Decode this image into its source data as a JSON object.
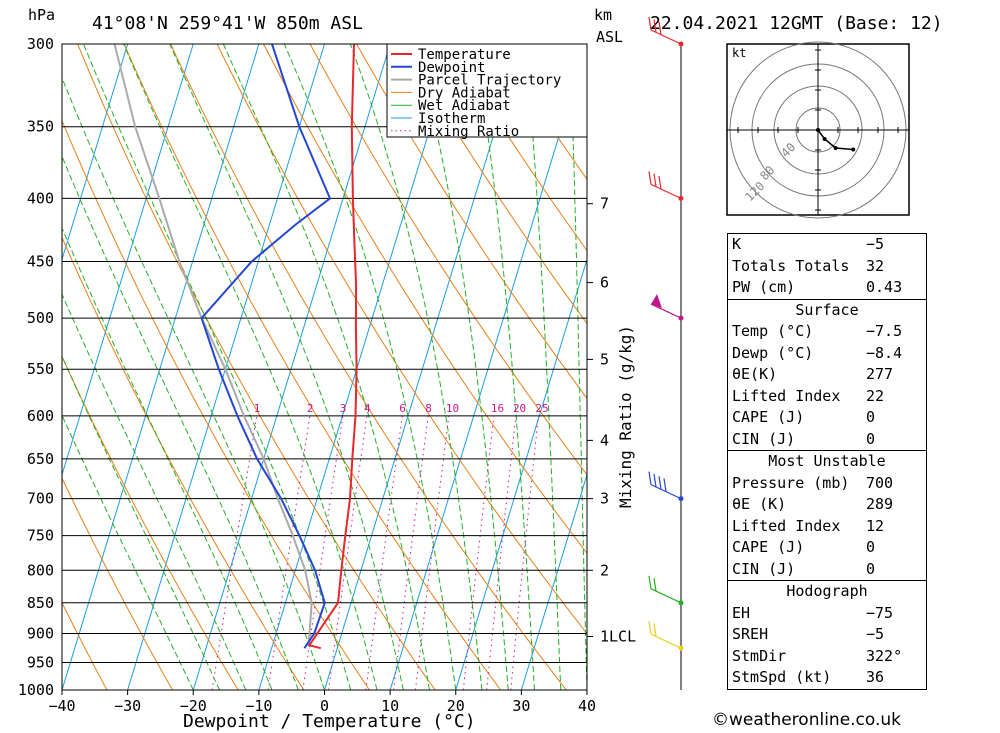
{
  "header": {
    "pressure_unit": "hPa",
    "location": "41°08'N  259°41'W  850m  ASL",
    "height_unit_km": "km",
    "height_unit_asl": "ASL",
    "datetime": "22.04.2021  12GMT  (Base: 12)"
  },
  "chart_data": {
    "type": "line",
    "title": "41°08'N  259°41'W  850m  ASL",
    "xlabel": "Dewpoint / Temperature (°C)",
    "ylabel": "hPa",
    "secondary_ylabel": "Mixing Ratio (g/kg)",
    "xlim": [
      -40,
      40
    ],
    "ylim": [
      1000,
      300
    ],
    "x_ticks": [
      -40,
      -30,
      -20,
      -10,
      0,
      10,
      20,
      30,
      40
    ],
    "x_tick_labels": [
      "−40",
      "−30",
      "−20",
      "−10",
      "0",
      "10",
      "20",
      "30",
      "40"
    ],
    "pressure_levels": [
      300,
      350,
      400,
      450,
      500,
      550,
      600,
      650,
      700,
      750,
      800,
      850,
      900,
      950,
      1000
    ],
    "km_ticks": [
      {
        "label": "7",
        "p": 404
      },
      {
        "label": "6",
        "p": 468
      },
      {
        "label": "5",
        "p": 540
      },
      {
        "label": "4",
        "p": 628
      },
      {
        "label": "3",
        "p": 700
      },
      {
        "label": "2",
        "p": 800
      },
      {
        "label": "1LCL",
        "p": 905
      }
    ],
    "mixing_ratio_labels": [
      "1",
      "2",
      "3",
      "4",
      "6",
      "8",
      "10",
      "16",
      "20",
      "25"
    ],
    "mixing_ratio_values": [
      1,
      2,
      3,
      4,
      6,
      8,
      10,
      16,
      20,
      25
    ],
    "legend": [
      "Temperature",
      "Dewpoint",
      "Parcel Trajectory",
      "Dry Adiabat",
      "Wet Adiabat",
      "Isotherm",
      "Mixing Ratio"
    ],
    "legend_position": "top-right",
    "colors": {
      "temperature": "#e8262b",
      "dewpoint": "#2446d0",
      "parcel": "#aaaaaa",
      "dry_adiabat": "#e8801a",
      "wet_adiabat": "#22b022",
      "isotherm": "#1b9ee0",
      "mixing_ratio": "#d0168c"
    },
    "series": [
      {
        "name": "Temperature",
        "points": [
          [
            -2.5,
            925
          ],
          [
            -4.4,
            920
          ],
          [
            -2,
            850
          ],
          [
            -3,
            800
          ],
          [
            -4,
            750
          ],
          [
            -5,
            700
          ],
          [
            -6.5,
            650
          ],
          [
            -8,
            600
          ],
          [
            -10,
            550
          ],
          [
            -12,
            510
          ],
          [
            -14,
            470
          ],
          [
            -16.5,
            430
          ],
          [
            -18.5,
            400
          ],
          [
            -22,
            350
          ],
          [
            -25.5,
            300
          ]
        ]
      },
      {
        "name": "Dewpoint",
        "points": [
          [
            -5,
            925
          ],
          [
            -4.2,
            900
          ],
          [
            -4,
            850
          ],
          [
            -7,
            800
          ],
          [
            -11,
            750
          ],
          [
            -15.5,
            700
          ],
          [
            -21,
            650
          ],
          [
            -26,
            600
          ],
          [
            -31,
            550
          ],
          [
            -36,
            500
          ],
          [
            -31,
            450
          ],
          [
            -26,
            420
          ],
          [
            -22,
            400
          ],
          [
            -30,
            350
          ],
          [
            -38,
            300
          ]
        ]
      },
      {
        "name": "Parcel Trajectory",
        "points": [
          [
            -4.5,
            920
          ],
          [
            -6,
            850
          ],
          [
            -8.5,
            800
          ],
          [
            -12,
            750
          ],
          [
            -16,
            700
          ],
          [
            -20,
            650
          ],
          [
            -25,
            600
          ],
          [
            -30,
            550
          ],
          [
            -36,
            500
          ],
          [
            -42,
            450
          ],
          [
            -48,
            400
          ],
          [
            -55,
            350
          ],
          [
            -62,
            300
          ]
        ]
      }
    ],
    "wind_barbs": [
      {
        "p": 300,
        "color": "#e8262b",
        "pennants": 0,
        "barbs": 3
      },
      {
        "p": 400,
        "color": "#e8262b",
        "pennants": 0,
        "barbs": 3
      },
      {
        "p": 500,
        "color": "#c0168c",
        "pennants": 1,
        "barbs": 0
      },
      {
        "p": 700,
        "color": "#2446d0",
        "pennants": 0,
        "barbs": 4
      },
      {
        "p": 850,
        "color": "#22b022",
        "pennants": 0,
        "barbs": 2
      },
      {
        "p": 925,
        "color": "#e8d020",
        "pennants": 0,
        "barbs": 2
      }
    ],
    "hodograph": {
      "unit": "kt",
      "ring_labels": [
        "40",
        "80",
        "120"
      ],
      "trace": [
        [
          0,
          0
        ],
        [
          3,
          -6
        ],
        [
          8,
          -12
        ],
        [
          16,
          -13
        ]
      ]
    }
  },
  "indices": {
    "k_label": "K",
    "k_value": "−5",
    "tt_label": "Totals Totals",
    "tt_value": "32",
    "pw_label": "PW (cm)",
    "pw_value": "0.43"
  },
  "surface": {
    "title": "Surface",
    "rows": [
      {
        "label": "Temp (°C)",
        "value": "−7.5"
      },
      {
        "label": "Dewp (°C)",
        "value": "−8.4"
      },
      {
        "label": "θE(K)",
        "value": "277"
      },
      {
        "label": "Lifted Index",
        "value": "22"
      },
      {
        "label": "CAPE (J)",
        "value": "0"
      },
      {
        "label": "CIN (J)",
        "value": "0"
      }
    ]
  },
  "most_unstable": {
    "title": "Most Unstable",
    "rows": [
      {
        "label": "Pressure (mb)",
        "value": "700"
      },
      {
        "label": "θE (K)",
        "value": "289"
      },
      {
        "label": "Lifted Index",
        "value": "12"
      },
      {
        "label": "CAPE (J)",
        "value": "0"
      },
      {
        "label": "CIN (J)",
        "value": "0"
      }
    ]
  },
  "hodograph_table": {
    "title": "Hodograph",
    "rows": [
      {
        "label": "EH",
        "value": "−75"
      },
      {
        "label": "SREH",
        "value": "−5"
      },
      {
        "label": "StmDir",
        "value": "322°"
      },
      {
        "label": "StmSpd (kt)",
        "value": "36"
      }
    ]
  },
  "footer": {
    "credit": "©weatheronline.co.uk"
  }
}
